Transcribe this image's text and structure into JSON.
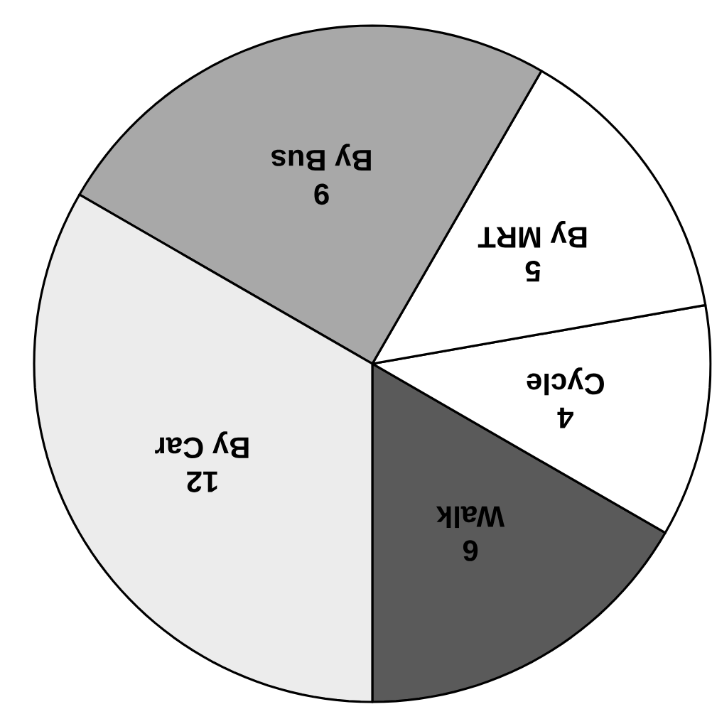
{
  "chart_data": {
    "type": "pie",
    "categories": [
      "Walk",
      "Cycle",
      "By MRT",
      "By Bus",
      "By Car"
    ],
    "values": [
      6,
      4,
      5,
      9,
      12
    ],
    "colors": [
      "#5a5a5a",
      "#ffffff",
      "#ffffff",
      "#a8a8a8",
      "#ececec"
    ],
    "data_labels": true
  }
}
